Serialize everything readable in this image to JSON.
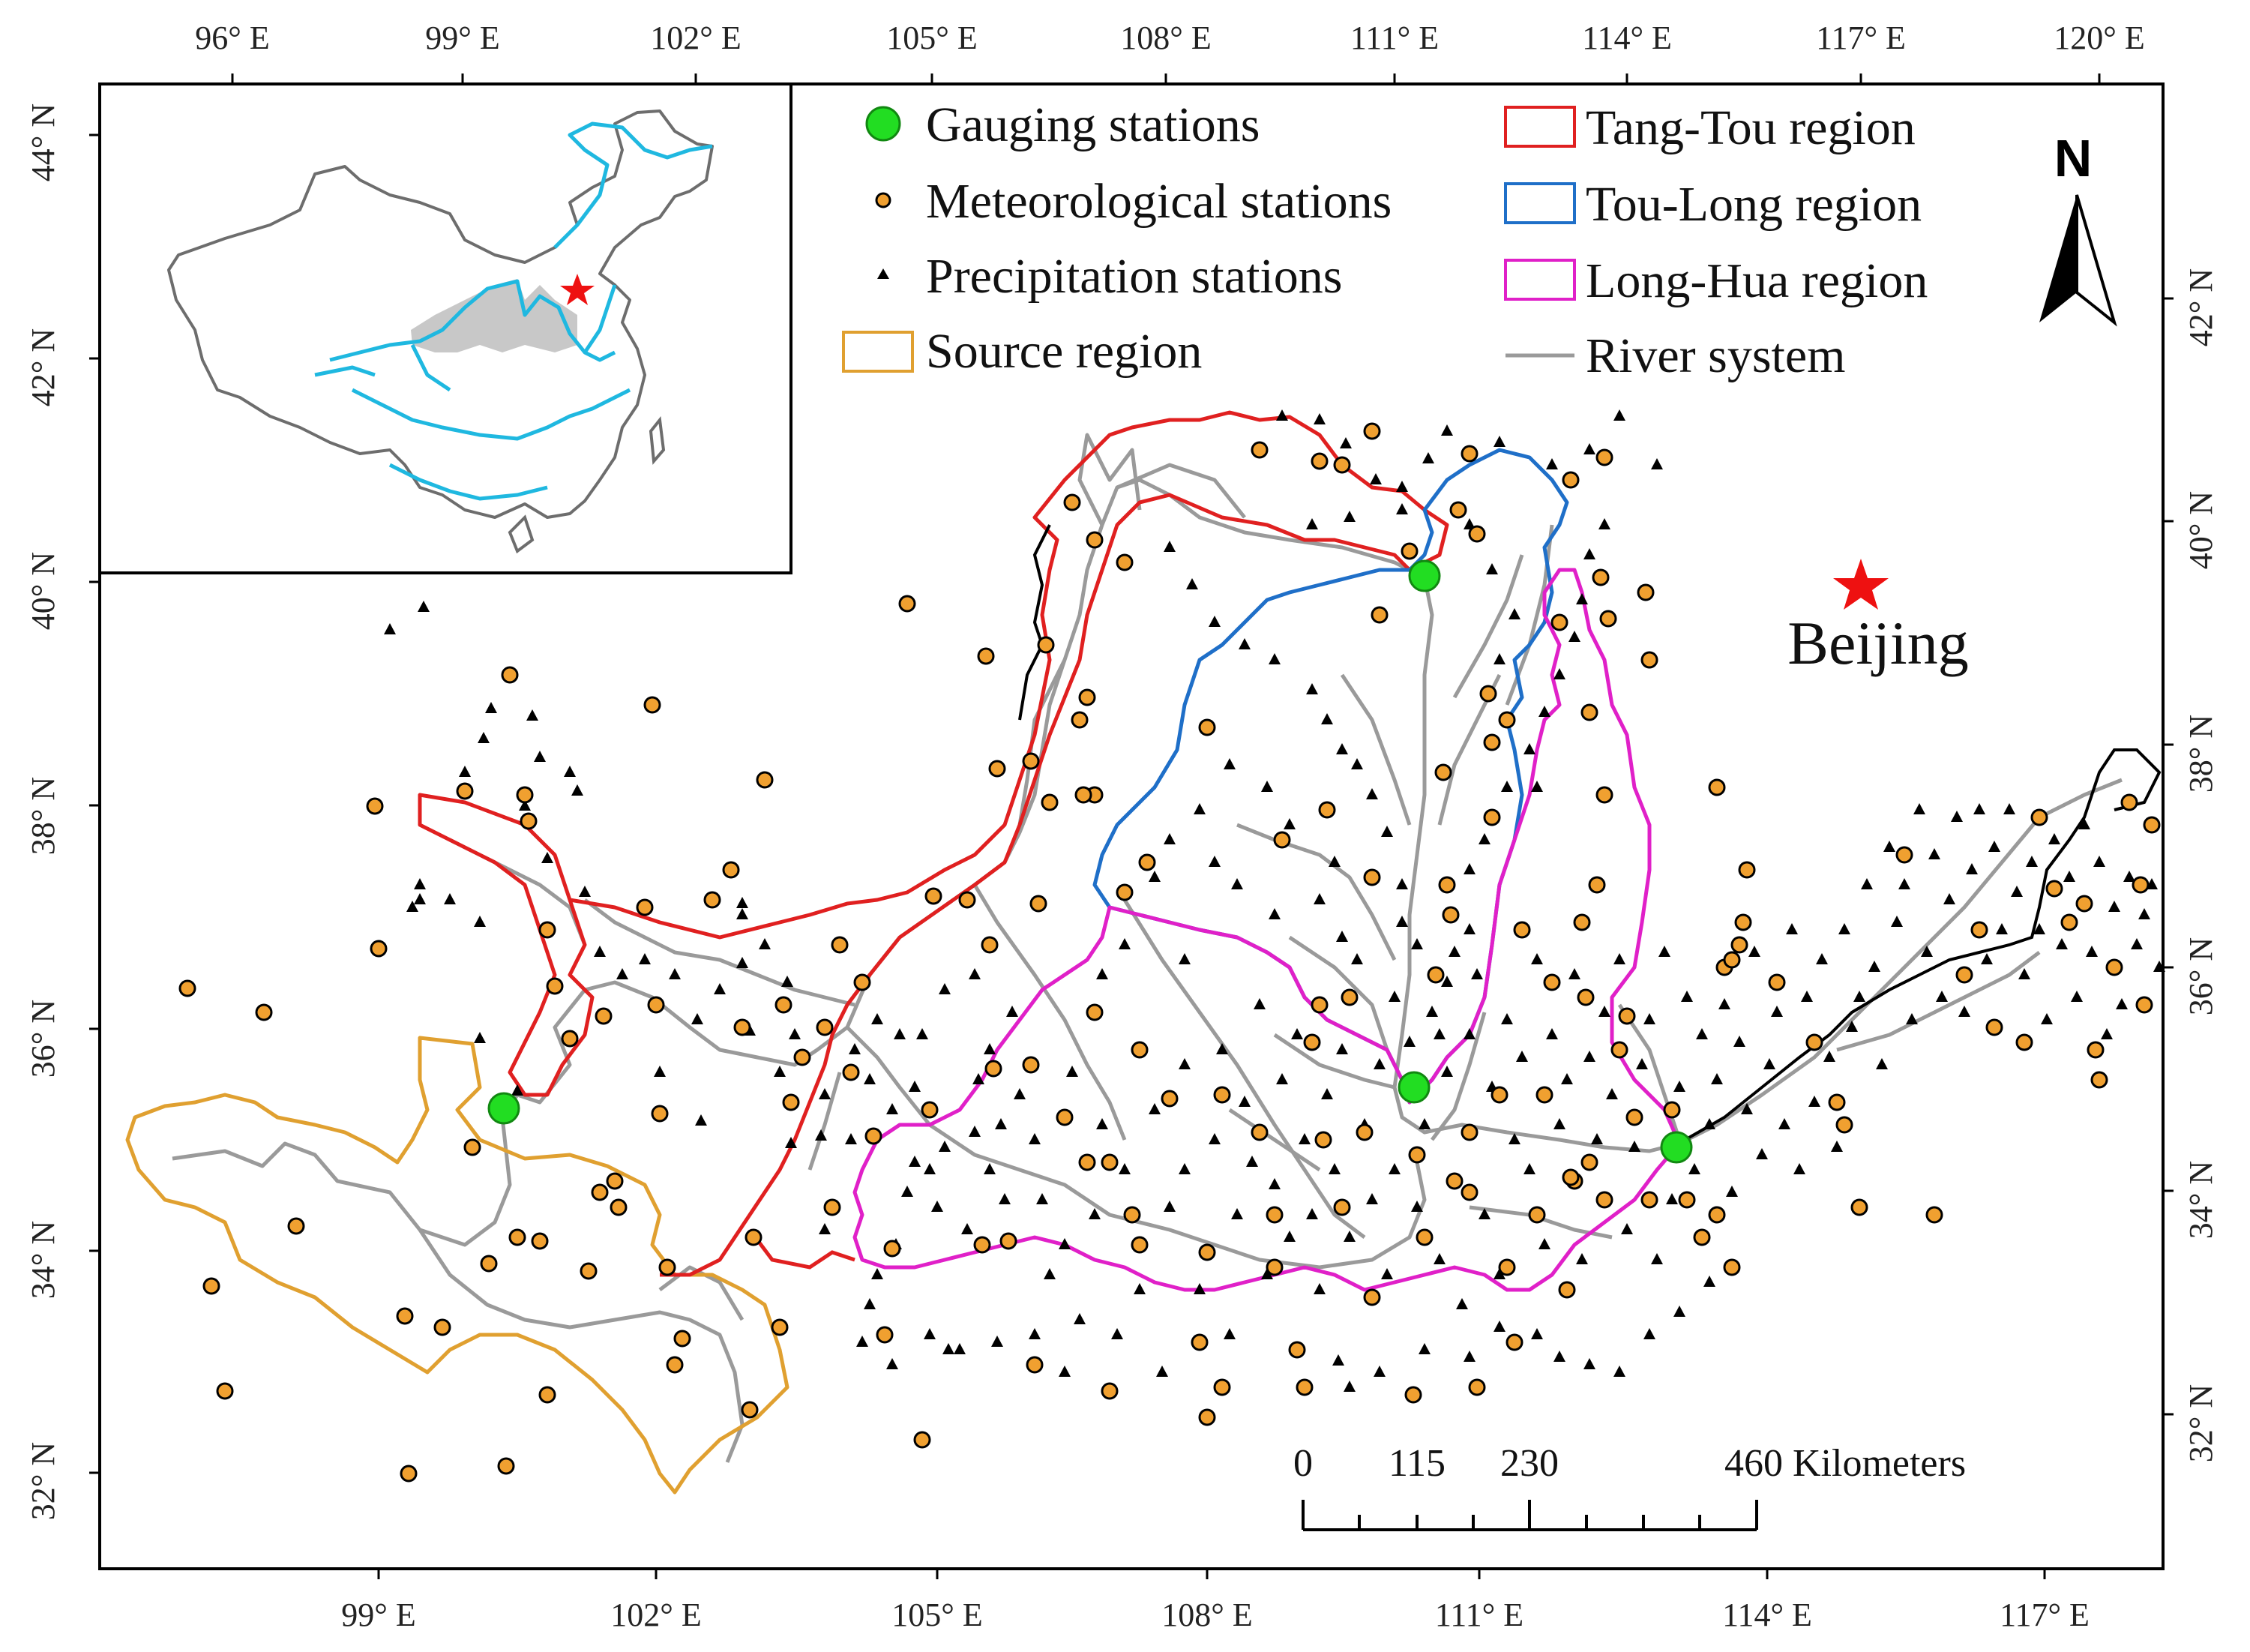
{
  "top_axis_labels": [
    "96° E",
    "99° E",
    "102° E",
    "105° E",
    "108° E",
    "111° E",
    "114° E",
    "117° E",
    "120° E"
  ],
  "bottom_axis_labels": [
    "99° E",
    "102° E",
    "105° E",
    "108° E",
    "111° E",
    "114° E",
    "117° E"
  ],
  "left_axis_labels": [
    "44° N",
    "42° N",
    "40° N",
    "38° N",
    "36° N",
    "34° N",
    "32° N"
  ],
  "right_axis_labels": [
    "42° N",
    "40° N",
    "38° N",
    "36° N",
    "34° N",
    "32° N"
  ],
  "legend": {
    "gauging": "Gauging stations",
    "meteorological": "Meteorological stations",
    "precipitation": "Precipitation stations",
    "source": "Source region",
    "tangtou": "Tang-Tou region",
    "toulong": "Tou-Long region",
    "longhua": "Long-Hua region",
    "river": "River system"
  },
  "north_arrow": "N",
  "city": "Beijing",
  "scale_bar": {
    "labels": [
      "0",
      "115",
      "230",
      "460 Kilometers"
    ]
  },
  "colors": {
    "gauging": "#22dd22",
    "meteorological": "#f0a030",
    "precipitation": "#000000",
    "source": "#e0a030",
    "tangtou": "#e02020",
    "toulong": "#1f6fc8",
    "longhua": "#e020c8",
    "river": "#9a9a9a",
    "inset_river": "#1fb8e0",
    "inset_basin": "#c8c8c8",
    "star": "#ee1111"
  },
  "icons": {
    "north": "north-arrow-icon",
    "city": "red-star-icon"
  }
}
